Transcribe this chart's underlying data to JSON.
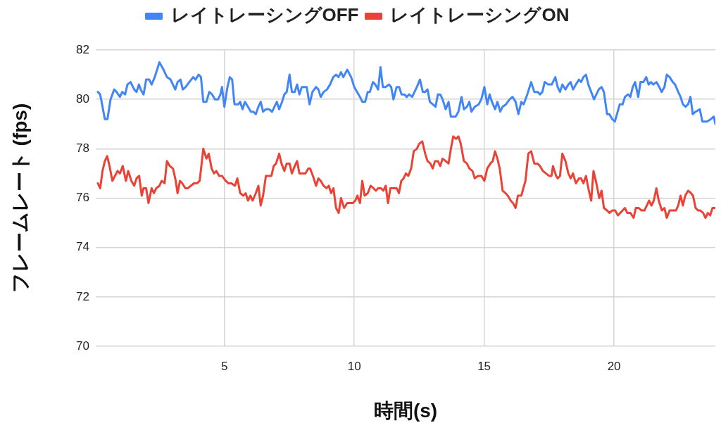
{
  "chart_data": {
    "type": "line",
    "xlabel": "時間(s)",
    "ylabel": "フレームレート (fps)",
    "xlim": [
      0.05,
      23.9
    ],
    "xticks": [
      5,
      10,
      15,
      20
    ],
    "ylim": [
      70,
      82
    ],
    "yticks": [
      70,
      72,
      74,
      76,
      78,
      80,
      82
    ],
    "grid": true,
    "legend": "top",
    "series": [
      {
        "name": "レイトレーシングOFF",
        "color": "#4285f4",
        "x": [
          0.13,
          0.22,
          0.4,
          0.5,
          0.62,
          0.76,
          0.85,
          0.98,
          1.07,
          1.18,
          1.27,
          1.39,
          1.53,
          1.62,
          1.71,
          1.78,
          1.89,
          1.99,
          2.11,
          2.2,
          2.32,
          2.5,
          2.66,
          2.79,
          2.93,
          3.02,
          3.11,
          3.2,
          3.31,
          3.4,
          3.51,
          3.65,
          3.8,
          3.89,
          4.01,
          4.1,
          4.19,
          4.31,
          4.42,
          4.53,
          4.64,
          4.76,
          4.85,
          4.91,
          5.0,
          5.12,
          5.21,
          5.3,
          5.39,
          5.54,
          5.61,
          5.7,
          5.79,
          5.91,
          6.02,
          6.11,
          6.21,
          6.31,
          6.4,
          6.49,
          6.6,
          6.72,
          6.84,
          6.93,
          7.02,
          7.11,
          7.22,
          7.31,
          7.4,
          7.51,
          7.6,
          7.71,
          7.8,
          7.89,
          7.98,
          8.17,
          8.28,
          8.39,
          8.53,
          8.62,
          8.71,
          8.82,
          8.95,
          9.07,
          9.19,
          9.3,
          9.39,
          9.49,
          9.58,
          9.73,
          9.88,
          10.0,
          10.11,
          10.22,
          10.31,
          10.42,
          10.52,
          10.6,
          10.72,
          10.81,
          10.92,
          11.01,
          11.1,
          11.21,
          11.33,
          11.42,
          11.51,
          11.63,
          11.73,
          11.82,
          11.93,
          12.02,
          12.11,
          12.23,
          12.32,
          12.41,
          12.53,
          12.64,
          12.73,
          12.82,
          12.91,
          13.02,
          13.13,
          13.22,
          13.31,
          13.4,
          13.52,
          13.63,
          13.72,
          13.9,
          14.01,
          14.13,
          14.22,
          14.34,
          14.43,
          14.51,
          14.64,
          14.79,
          14.89,
          15.01,
          15.12,
          15.21,
          15.3,
          15.42,
          15.51,
          15.62,
          15.71,
          15.84,
          15.98,
          16.09,
          16.21,
          16.32,
          16.43,
          16.52,
          16.66,
          16.81,
          16.93,
          17.06,
          17.15,
          17.24,
          17.33,
          17.47,
          17.6,
          17.74,
          17.83,
          17.92,
          18.01,
          18.13,
          18.24,
          18.33,
          18.42,
          18.53,
          18.65,
          18.73,
          18.82,
          18.92,
          19.01,
          19.12,
          19.23,
          19.32,
          19.41,
          19.52,
          19.61,
          19.73,
          19.82,
          19.93,
          20.03,
          20.14,
          20.22,
          20.33,
          20.42,
          20.54,
          20.63,
          20.72,
          20.81,
          20.93,
          21.02,
          21.13,
          21.24,
          21.33,
          21.42,
          21.51,
          21.63,
          21.74,
          21.83,
          21.94,
          22.03,
          22.14,
          22.26,
          22.35,
          22.47,
          22.56,
          22.65,
          22.75,
          22.85,
          22.94,
          23.03,
          23.14,
          23.3,
          23.4,
          23.58,
          23.73,
          23.84,
          23.9
        ],
        "values": [
          80.3,
          80.2,
          79.2,
          79.2,
          80.0,
          80.4,
          80.3,
          80.1,
          80.3,
          80.2,
          80.6,
          80.7,
          80.4,
          80.3,
          80.6,
          80.4,
          80.2,
          80.8,
          80.8,
          80.6,
          80.9,
          81.5,
          81.2,
          80.9,
          80.8,
          80.6,
          80.4,
          80.7,
          80.8,
          80.4,
          80.5,
          80.7,
          80.9,
          80.8,
          81.0,
          80.9,
          79.9,
          79.9,
          80.3,
          80.2,
          80.0,
          80.0,
          80.2,
          80.5,
          79.7,
          80.5,
          80.9,
          80.8,
          79.8,
          79.8,
          79.9,
          79.6,
          79.9,
          79.7,
          79.5,
          79.5,
          79.4,
          79.7,
          79.9,
          79.5,
          79.6,
          79.6,
          79.5,
          79.7,
          79.9,
          79.6,
          79.9,
          80.2,
          80.3,
          81.0,
          80.3,
          80.3,
          80.6,
          80.2,
          80.5,
          80.5,
          79.8,
          80.3,
          80.5,
          80.4,
          80.1,
          80.3,
          80.4,
          80.6,
          80.9,
          81.0,
          80.9,
          81.1,
          80.9,
          81.2,
          80.9,
          80.5,
          80.3,
          80.1,
          79.9,
          79.9,
          80.3,
          80.3,
          80.7,
          80.6,
          80.4,
          81.3,
          80.5,
          80.5,
          80.6,
          80.5,
          80.0,
          80.5,
          80.5,
          80.2,
          80.2,
          80.1,
          80.2,
          80.1,
          80.3,
          80.5,
          80.8,
          80.3,
          80.3,
          80.4,
          79.9,
          79.8,
          79.7,
          80.2,
          80.2,
          80.0,
          79.6,
          79.9,
          79.3,
          79.3,
          79.5,
          80.1,
          79.6,
          79.7,
          79.9,
          79.5,
          79.7,
          79.8,
          80.0,
          80.5,
          79.8,
          80.2,
          79.9,
          79.6,
          79.9,
          79.5,
          79.7,
          79.8,
          80.0,
          80.1,
          79.9,
          79.4,
          79.9,
          79.8,
          80.2,
          80.7,
          80.3,
          80.3,
          80.2,
          80.3,
          80.7,
          80.6,
          80.6,
          80.9,
          80.5,
          80.3,
          80.6,
          80.4,
          80.6,
          80.7,
          80.4,
          80.6,
          80.8,
          80.7,
          80.9,
          81.0,
          80.6,
          80.3,
          80.0,
          80.2,
          80.4,
          80.5,
          80.3,
          79.4,
          79.4,
          79.2,
          79.1,
          79.5,
          79.8,
          79.8,
          80.1,
          80.2,
          80.1,
          80.5,
          80.7,
          80.1,
          80.7,
          80.7,
          80.9,
          80.6,
          80.7,
          80.6,
          80.7,
          80.5,
          80.3,
          80.5,
          81.0,
          80.9,
          80.7,
          80.6,
          80.3,
          80.1,
          79.8,
          79.7,
          79.8,
          80.1,
          79.4,
          79.5,
          79.6,
          79.1,
          79.1,
          79.2,
          79.3,
          79.0
        ]
      },
      {
        "name": "レイトレーシングON",
        "color": "#ea4335",
        "x": [
          0.13,
          0.22,
          0.31,
          0.4,
          0.49,
          0.58,
          0.69,
          0.79,
          0.89,
          0.98,
          1.09,
          1.21,
          1.3,
          1.42,
          1.53,
          1.62,
          1.72,
          1.82,
          1.89,
          1.99,
          2.08,
          2.2,
          2.29,
          2.38,
          2.5,
          2.59,
          2.7,
          2.79,
          2.9,
          3.02,
          3.11,
          3.2,
          3.29,
          3.38,
          3.5,
          3.6,
          3.71,
          3.83,
          3.95,
          4.05,
          4.19,
          4.31,
          4.4,
          4.51,
          4.6,
          4.69,
          4.8,
          4.91,
          5.05,
          5.16,
          5.27,
          5.41,
          5.5,
          5.61,
          5.73,
          5.82,
          5.91,
          6.0,
          6.09,
          6.21,
          6.31,
          6.4,
          6.49,
          6.6,
          6.72,
          6.81,
          6.9,
          6.99,
          7.11,
          7.2,
          7.31,
          7.4,
          7.51,
          7.6,
          7.71,
          7.8,
          7.89,
          8.01,
          8.12,
          8.23,
          8.3,
          8.41,
          8.53,
          8.62,
          8.71,
          8.82,
          8.93,
          9.02,
          9.11,
          9.2,
          9.3,
          9.4,
          9.49,
          9.61,
          9.73,
          9.84,
          9.95,
          10.04,
          10.12,
          10.22,
          10.31,
          10.4,
          10.52,
          10.63,
          10.74,
          10.83,
          10.92,
          11.03,
          11.12,
          11.21,
          11.3,
          11.39,
          11.51,
          11.63,
          11.72,
          11.81,
          11.9,
          11.99,
          12.08,
          12.19,
          12.29,
          12.41,
          12.5,
          12.62,
          12.73,
          12.82,
          12.93,
          13.02,
          13.11,
          13.22,
          13.31,
          13.4,
          13.52,
          13.63,
          13.72,
          13.81,
          13.92,
          14.01,
          14.1,
          14.22,
          14.34,
          14.43,
          14.55,
          14.64,
          14.76,
          14.89,
          15.01,
          15.12,
          15.24,
          15.33,
          15.42,
          15.51,
          15.6,
          15.71,
          15.82,
          15.91,
          16.02,
          16.11,
          16.21,
          16.3,
          16.43,
          16.59,
          16.7,
          16.81,
          16.93,
          17.05,
          17.15,
          17.26,
          17.38,
          17.5,
          17.59,
          17.65,
          17.77,
          17.83,
          17.92,
          18.01,
          18.13,
          18.24,
          18.33,
          18.42,
          18.53,
          18.65,
          18.73,
          18.82,
          18.92,
          19.01,
          19.12,
          19.21,
          19.32,
          19.43,
          19.52,
          19.61,
          19.73,
          19.82,
          19.93,
          20.04,
          20.15,
          20.24,
          20.33,
          20.42,
          20.51,
          20.63,
          20.75,
          20.84,
          20.95,
          21.06,
          21.17,
          21.26,
          21.35,
          21.44,
          21.53,
          21.63,
          21.72,
          21.84,
          21.94,
          22.03,
          22.14,
          22.26,
          22.38,
          22.47,
          22.56,
          22.65,
          22.74,
          22.85,
          22.96,
          23.04,
          23.14,
          23.23,
          23.32,
          23.43,
          23.52,
          23.61,
          23.7,
          23.79,
          23.9
        ],
        "values": [
          76.6,
          76.4,
          77.1,
          77.5,
          77.7,
          77.3,
          76.7,
          76.9,
          77.1,
          77.0,
          77.3,
          76.7,
          77.1,
          76.7,
          76.5,
          76.8,
          76.9,
          76.1,
          76.4,
          76.4,
          75.8,
          76.4,
          76.2,
          76.4,
          76.5,
          76.7,
          76.6,
          77.5,
          77.3,
          77.2,
          76.8,
          76.2,
          76.7,
          76.6,
          76.4,
          76.4,
          76.5,
          76.6,
          76.6,
          76.7,
          78.0,
          77.6,
          77.8,
          77.2,
          77.0,
          77.1,
          76.9,
          76.9,
          76.7,
          76.6,
          76.6,
          76.5,
          76.8,
          76.2,
          76.1,
          76.2,
          75.9,
          76.1,
          75.9,
          76.2,
          76.5,
          75.7,
          76.1,
          76.9,
          76.9,
          76.9,
          77.3,
          77.4,
          77.8,
          77.4,
          77.1,
          77.4,
          77.4,
          77.0,
          77.3,
          77.5,
          77.0,
          77.0,
          77.0,
          77.2,
          77.2,
          76.9,
          76.5,
          76.8,
          76.7,
          76.5,
          76.4,
          76.5,
          76.2,
          76.4,
          75.6,
          75.4,
          76.0,
          75.6,
          75.8,
          75.8,
          75.8,
          75.9,
          76.1,
          75.8,
          76.7,
          76.1,
          76.2,
          76.5,
          76.4,
          76.3,
          76.4,
          76.4,
          76.3,
          76.5,
          75.8,
          76.4,
          76.4,
          76.4,
          76.2,
          76.7,
          76.8,
          77.0,
          76.9,
          77.2,
          77.9,
          78.0,
          78.2,
          78.3,
          77.8,
          77.5,
          77.4,
          77.2,
          77.5,
          77.5,
          77.3,
          77.6,
          77.5,
          77.4,
          78.0,
          78.5,
          78.4,
          78.5,
          78.2,
          77.5,
          77.4,
          77.2,
          77.1,
          76.8,
          76.9,
          76.9,
          76.7,
          77.2,
          77.4,
          77.5,
          77.9,
          77.6,
          77.2,
          76.3,
          76.2,
          76.1,
          75.9,
          75.8,
          75.6,
          76.1,
          76.1,
          76.7,
          77.8,
          77.9,
          77.4,
          77.4,
          77.3,
          77.1,
          77.0,
          76.9,
          76.9,
          77.3,
          76.9,
          76.8,
          76.9,
          77.8,
          77.5,
          77.0,
          76.8,
          77.0,
          76.6,
          76.8,
          76.8,
          76.6,
          76.9,
          76.4,
          75.9,
          77.1,
          76.6,
          76.0,
          76.3,
          75.6,
          75.5,
          75.4,
          75.5,
          75.5,
          75.3,
          75.4,
          75.5,
          75.6,
          75.4,
          75.4,
          75.2,
          75.6,
          75.6,
          75.5,
          75.5,
          75.7,
          75.9,
          75.7,
          75.9,
          76.4,
          75.9,
          75.5,
          75.6,
          75.2,
          75.5,
          75.5,
          75.5,
          75.7,
          76.1,
          75.7,
          76.1,
          76.3,
          76.2,
          76.1,
          75.6,
          75.5,
          75.5,
          75.4,
          75.2,
          75.4,
          75.3,
          75.6,
          75.6
        ]
      }
    ]
  }
}
